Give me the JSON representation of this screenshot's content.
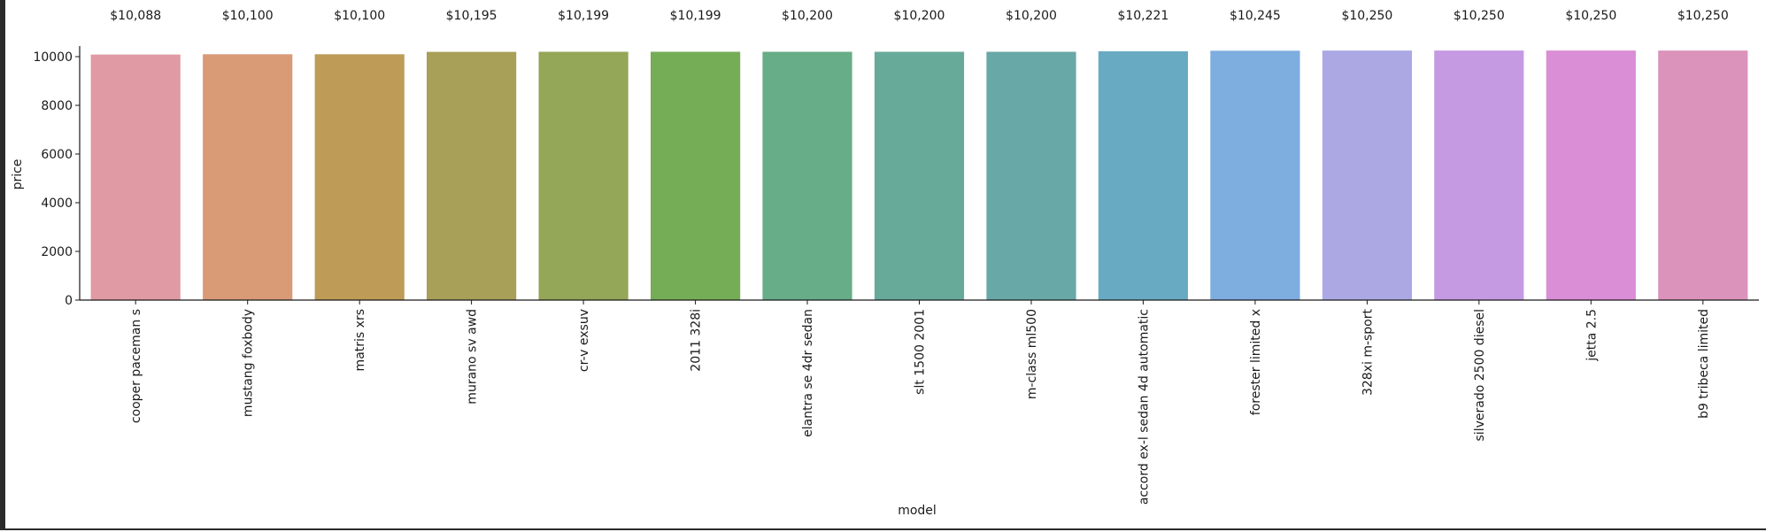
{
  "chart_data": {
    "type": "bar",
    "title": "",
    "xlabel": "model",
    "ylabel": "price",
    "ylim": [
      0,
      10600
    ],
    "y_ticks": [
      0,
      2000,
      4000,
      6000,
      8000,
      10000
    ],
    "grid": false,
    "categories": [
      "cooper paceman s",
      "mustang foxbody",
      "matris xrs",
      "murano sv awd",
      "cr-v exsuv",
      "2011 328i",
      "elantra se 4dr sedan",
      "slt 1500 2001",
      "m-class ml500",
      "accord ex-l sedan 4d automatic",
      "forester limited x",
      "328xi m-sport",
      "silverado 2500 diesel",
      "jetta 2.5",
      "b9 tribeca limited"
    ],
    "values": [
      10088,
      10100,
      10100,
      10195,
      10199,
      10199,
      10200,
      10200,
      10200,
      10221,
      10245,
      10250,
      10250,
      10250,
      10250
    ],
    "data_labels": [
      "$10,088",
      "$10,100",
      "$10,100",
      "$10,195",
      "$10,199",
      "$10,199",
      "$10,200",
      "$10,200",
      "$10,200",
      "$10,221",
      "$10,245",
      "$10,250",
      "$10,250",
      "$10,250",
      "$10,250"
    ],
    "colors": [
      "#e09aa3",
      "#d99a76",
      "#be9c57",
      "#a89f58",
      "#94a657",
      "#74ad56",
      "#67ad87",
      "#67aa9a",
      "#68a8a7",
      "#68aac2",
      "#7eaddf",
      "#aba8e4",
      "#c59ae3",
      "#da8ed6",
      "#db93bb"
    ]
  }
}
